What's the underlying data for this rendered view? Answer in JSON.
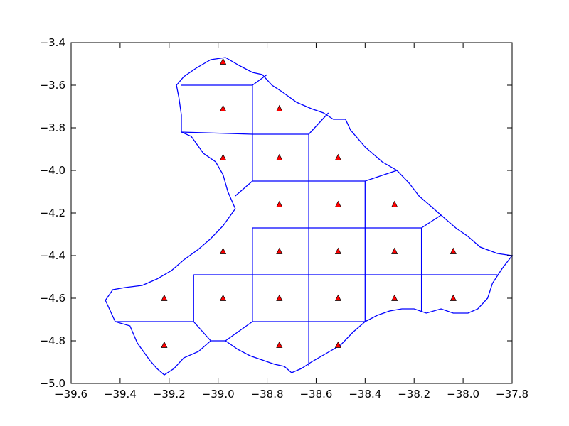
{
  "chart_data": {
    "type": "scatter",
    "title": "",
    "xlabel": "",
    "ylabel": "",
    "xlim": [
      -39.6,
      -37.8
    ],
    "ylim": [
      -5.0,
      -3.4
    ],
    "x_ticks": [
      -39.6,
      -39.4,
      -39.2,
      -39.0,
      -38.8,
      -38.6,
      -38.4,
      -38.2,
      -38.0,
      -37.8
    ],
    "y_ticks": [
      -3.4,
      -3.6,
      -3.8,
      -4.0,
      -4.2,
      -4.4,
      -4.6,
      -4.8,
      -5.0
    ],
    "x_tick_labels": [
      "−39.6",
      "−39.4",
      "−39.2",
      "−39.0",
      "−38.8",
      "−38.6",
      "−38.4",
      "−38.2",
      "−38.0",
      "−37.8"
    ],
    "y_tick_labels": [
      "−3.4",
      "−3.6",
      "−3.8",
      "−4.0",
      "−4.2",
      "−4.4",
      "−4.6",
      "−4.8",
      "−5.0"
    ],
    "grid": false,
    "colors": {
      "boundary": "#0000ff",
      "marker_fill": "#ff0000",
      "marker_edge": "#000000"
    },
    "marker": "triangle",
    "points": [
      [
        -38.98,
        -3.49
      ],
      [
        -38.98,
        -3.71
      ],
      [
        -38.75,
        -3.71
      ],
      [
        -38.98,
        -3.94
      ],
      [
        -38.75,
        -3.94
      ],
      [
        -38.51,
        -3.94
      ],
      [
        -38.75,
        -4.16
      ],
      [
        -38.51,
        -4.16
      ],
      [
        -38.28,
        -4.16
      ],
      [
        -38.98,
        -4.38
      ],
      [
        -38.75,
        -4.38
      ],
      [
        -38.51,
        -4.38
      ],
      [
        -38.28,
        -4.38
      ],
      [
        -38.04,
        -4.38
      ],
      [
        -39.22,
        -4.6
      ],
      [
        -38.98,
        -4.6
      ],
      [
        -38.75,
        -4.6
      ],
      [
        -38.51,
        -4.6
      ],
      [
        -38.28,
        -4.6
      ],
      [
        -38.04,
        -4.6
      ],
      [
        -39.22,
        -4.82
      ],
      [
        -38.75,
        -4.82
      ],
      [
        -38.51,
        -4.82
      ]
    ],
    "outline": [
      [
        -39.22,
        -4.96
      ],
      [
        -39.25,
        -4.93
      ],
      [
        -39.28,
        -4.89
      ],
      [
        -39.33,
        -4.81
      ],
      [
        -39.36,
        -4.73
      ],
      [
        -39.42,
        -4.71
      ],
      [
        -39.46,
        -4.61
      ],
      [
        -39.43,
        -4.56
      ],
      [
        -39.38,
        -4.55
      ],
      [
        -39.31,
        -4.54
      ],
      [
        -39.25,
        -4.51
      ],
      [
        -39.19,
        -4.47
      ],
      [
        -39.14,
        -4.42
      ],
      [
        -39.08,
        -4.37
      ],
      [
        -39.03,
        -4.32
      ],
      [
        -38.98,
        -4.26
      ],
      [
        -38.93,
        -4.18
      ],
      [
        -38.96,
        -4.1
      ],
      [
        -38.98,
        -4.02
      ],
      [
        -39.01,
        -3.96
      ],
      [
        -39.06,
        -3.92
      ],
      [
        -39.11,
        -3.84
      ],
      [
        -39.15,
        -3.82
      ],
      [
        -39.15,
        -3.74
      ],
      [
        -39.16,
        -3.66
      ],
      [
        -39.17,
        -3.6
      ],
      [
        -39.14,
        -3.56
      ],
      [
        -39.09,
        -3.52
      ],
      [
        -39.03,
        -3.48
      ],
      [
        -38.97,
        -3.47
      ],
      [
        -38.91,
        -3.51
      ],
      [
        -38.86,
        -3.54
      ],
      [
        -38.82,
        -3.55
      ],
      [
        -38.78,
        -3.6
      ],
      [
        -38.74,
        -3.63
      ],
      [
        -38.68,
        -3.68
      ],
      [
        -38.62,
        -3.71
      ],
      [
        -38.57,
        -3.73
      ],
      [
        -38.53,
        -3.76
      ],
      [
        -38.48,
        -3.76
      ],
      [
        -38.46,
        -3.81
      ],
      [
        -38.4,
        -3.89
      ],
      [
        -38.33,
        -3.96
      ],
      [
        -38.27,
        -4.0
      ],
      [
        -38.22,
        -4.06
      ],
      [
        -38.18,
        -4.12
      ],
      [
        -38.14,
        -4.16
      ],
      [
        -38.09,
        -4.21
      ],
      [
        -38.03,
        -4.27
      ],
      [
        -37.98,
        -4.31
      ],
      [
        -37.93,
        -4.36
      ],
      [
        -37.86,
        -4.39
      ],
      [
        -37.8,
        -4.4
      ],
      [
        -37.84,
        -4.46
      ],
      [
        -37.88,
        -4.53
      ],
      [
        -37.9,
        -4.6
      ],
      [
        -37.94,
        -4.65
      ],
      [
        -37.98,
        -4.67
      ],
      [
        -38.04,
        -4.67
      ],
      [
        -38.09,
        -4.65
      ],
      [
        -38.15,
        -4.67
      ],
      [
        -38.2,
        -4.65
      ],
      [
        -38.25,
        -4.65
      ],
      [
        -38.3,
        -4.66
      ],
      [
        -38.35,
        -4.68
      ],
      [
        -38.4,
        -4.71
      ],
      [
        -38.45,
        -4.76
      ],
      [
        -38.5,
        -4.82
      ],
      [
        -38.56,
        -4.86
      ],
      [
        -38.62,
        -4.9
      ],
      [
        -38.66,
        -4.93
      ],
      [
        -38.7,
        -4.95
      ],
      [
        -38.73,
        -4.92
      ],
      [
        -38.77,
        -4.91
      ],
      [
        -38.82,
        -4.89
      ],
      [
        -38.87,
        -4.87
      ],
      [
        -38.92,
        -4.84
      ],
      [
        -38.97,
        -4.8
      ],
      [
        -39.03,
        -4.8
      ],
      [
        -39.08,
        -4.85
      ],
      [
        -39.14,
        -4.88
      ],
      [
        -39.18,
        -4.93
      ],
      [
        -39.22,
        -4.96
      ]
    ],
    "cell_edges": [
      [
        [
          -39.15,
          -3.6
        ],
        [
          -38.86,
          -3.6
        ]
      ],
      [
        [
          -38.86,
          -3.6
        ],
        [
          -38.8,
          -3.55
        ]
      ],
      [
        [
          -38.86,
          -3.6
        ],
        [
          -38.86,
          -3.83
        ]
      ],
      [
        [
          -38.86,
          -3.83
        ],
        [
          -38.63,
          -3.83
        ]
      ],
      [
        [
          -38.63,
          -3.83
        ],
        [
          -38.55,
          -3.73
        ]
      ],
      [
        [
          -39.15,
          -3.82
        ],
        [
          -38.86,
          -3.83
        ]
      ],
      [
        [
          -38.86,
          -3.83
        ],
        [
          -38.86,
          -4.05
        ]
      ],
      [
        [
          -38.63,
          -3.83
        ],
        [
          -38.63,
          -4.05
        ]
      ],
      [
        [
          -38.86,
          -4.05
        ],
        [
          -38.4,
          -4.05
        ]
      ],
      [
        [
          -38.86,
          -4.05
        ],
        [
          -38.93,
          -4.12
        ]
      ],
      [
        [
          -38.4,
          -4.05
        ],
        [
          -38.27,
          -4.0
        ]
      ],
      [
        [
          -38.63,
          -4.05
        ],
        [
          -38.63,
          -4.27
        ]
      ],
      [
        [
          -38.4,
          -4.05
        ],
        [
          -38.4,
          -4.27
        ]
      ],
      [
        [
          -38.86,
          -4.27
        ],
        [
          -38.17,
          -4.27
        ]
      ],
      [
        [
          -38.17,
          -4.27
        ],
        [
          -38.09,
          -4.21
        ]
      ],
      [
        [
          -38.86,
          -4.27
        ],
        [
          -38.86,
          -4.49
        ]
      ],
      [
        [
          -38.63,
          -4.27
        ],
        [
          -38.63,
          -4.49
        ]
      ],
      [
        [
          -38.4,
          -4.27
        ],
        [
          -38.4,
          -4.49
        ]
      ],
      [
        [
          -38.17,
          -4.27
        ],
        [
          -38.17,
          -4.49
        ]
      ],
      [
        [
          -39.1,
          -4.49
        ],
        [
          -37.86,
          -4.49
        ]
      ],
      [
        [
          -39.1,
          -4.49
        ],
        [
          -39.1,
          -4.71
        ]
      ],
      [
        [
          -39.1,
          -4.71
        ],
        [
          -39.42,
          -4.71
        ]
      ],
      [
        [
          -39.1,
          -4.71
        ],
        [
          -39.03,
          -4.8
        ]
      ],
      [
        [
          -38.86,
          -4.49
        ],
        [
          -38.86,
          -4.71
        ]
      ],
      [
        [
          -38.86,
          -4.71
        ],
        [
          -38.97,
          -4.8
        ]
      ],
      [
        [
          -38.63,
          -4.49
        ],
        [
          -38.63,
          -4.71
        ]
      ],
      [
        [
          -38.4,
          -4.49
        ],
        [
          -38.4,
          -4.71
        ]
      ],
      [
        [
          -38.17,
          -4.49
        ],
        [
          -38.17,
          -4.66
        ]
      ],
      [
        [
          -38.86,
          -4.71
        ],
        [
          -38.4,
          -4.71
        ]
      ],
      [
        [
          -38.63,
          -4.71
        ],
        [
          -38.63,
          -4.92
        ]
      ]
    ]
  }
}
